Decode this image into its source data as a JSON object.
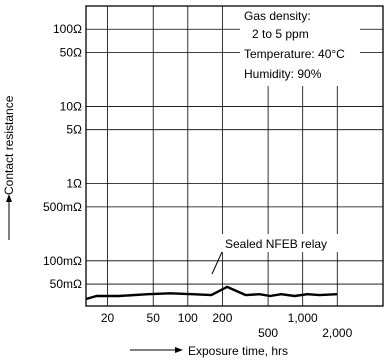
{
  "chart_data": {
    "type": "line",
    "title": "",
    "xlabel": "Exposure time, hrs",
    "ylabel": "Contact resistance",
    "x_scale": "log",
    "y_scale": "log",
    "xlim_hours": [
      13,
      5000
    ],
    "ylim_ohms": [
      0.026,
      200
    ],
    "y_ticks": [
      {
        "value": 100,
        "label": "100Ω"
      },
      {
        "value": 50,
        "label": "50Ω"
      },
      {
        "value": 10,
        "label": "10Ω"
      },
      {
        "value": 5,
        "label": "5Ω"
      },
      {
        "value": 1,
        "label": "1Ω"
      },
      {
        "value": 0.5,
        "label": "500mΩ"
      },
      {
        "value": 0.1,
        "label": "100mΩ"
      },
      {
        "value": 0.05,
        "label": "50mΩ"
      }
    ],
    "x_ticks_row1": [
      {
        "value": 20,
        "label": "20"
      },
      {
        "value": 50,
        "label": "50"
      },
      {
        "value": 100,
        "label": "100"
      },
      {
        "value": 200,
        "label": "200"
      },
      {
        "value": 1000,
        "label": "1,000"
      }
    ],
    "x_ticks_row2": [
      {
        "value": 500,
        "label": "500"
      },
      {
        "value": 2000,
        "label": "2,000"
      }
    ],
    "grid": true,
    "info_box": [
      "Gas density:",
      "2 to 5 ppm",
      "Temperature: 40°C",
      "Humidity: 90%"
    ],
    "series": [
      {
        "name": "Sealed NFEB relay",
        "x": [
          13,
          16,
          25,
          45,
          70,
          110,
          160,
          220,
          320,
          420,
          520,
          650,
          850,
          1100,
          1400,
          2000
        ],
        "y": [
          0.032,
          0.035,
          0.035,
          0.037,
          0.038,
          0.037,
          0.036,
          0.046,
          0.036,
          0.037,
          0.035,
          0.037,
          0.035,
          0.037,
          0.036,
          0.037
        ]
      }
    ]
  }
}
